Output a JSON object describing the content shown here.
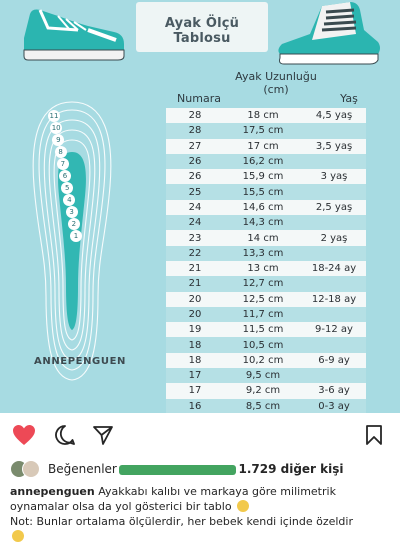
{
  "image": {
    "title": "Ayak Ölçü Tablosu",
    "brand": "ANNEPENGUEN",
    "headers": {
      "number": "Numara",
      "length": "Ayak Uzunluğu (cm)",
      "age": "Yaş"
    },
    "rows": [
      {
        "num": "28",
        "cm": "18 cm",
        "age": "4,5 yaş"
      },
      {
        "num": "28",
        "cm": "17,5 cm",
        "age": ""
      },
      {
        "num": "27",
        "cm": "17 cm",
        "age": "3,5 yaş"
      },
      {
        "num": "26",
        "cm": "16,2 cm",
        "age": ""
      },
      {
        "num": "26",
        "cm": "15,9 cm",
        "age": "3 yaş"
      },
      {
        "num": "25",
        "cm": "15,5 cm",
        "age": ""
      },
      {
        "num": "24",
        "cm": "14,6 cm",
        "age": "2,5 yaş"
      },
      {
        "num": "24",
        "cm": "14,3 cm",
        "age": ""
      },
      {
        "num": "23",
        "cm": "14 cm",
        "age": "2 yaş"
      },
      {
        "num": "22",
        "cm": "13,3 cm",
        "age": ""
      },
      {
        "num": "21",
        "cm": "13 cm",
        "age": "18-24 ay"
      },
      {
        "num": "21",
        "cm": "12,7 cm",
        "age": ""
      },
      {
        "num": "20",
        "cm": "12,5 cm",
        "age": "12-18 ay"
      },
      {
        "num": "20",
        "cm": "11,7 cm",
        "age": ""
      },
      {
        "num": "19",
        "cm": "11,5 cm",
        "age": "9-12 ay"
      },
      {
        "num": "18",
        "cm": "10,5 cm",
        "age": ""
      },
      {
        "num": "18",
        "cm": "10,2 cm",
        "age": "6-9 ay"
      },
      {
        "num": "17",
        "cm": "9,5 cm",
        "age": ""
      },
      {
        "num": "17",
        "cm": "9,2 cm",
        "age": "3-6 ay"
      },
      {
        "num": "16",
        "cm": "8,5 cm",
        "age": "0-3 ay"
      }
    ],
    "foot_sizes": [
      "11",
      "10",
      "9",
      "8",
      "7",
      "6",
      "5",
      "4",
      "3",
      "2",
      "1"
    ]
  },
  "actions": {
    "like_icon": "heart-icon",
    "comment_icon": "comment-icon",
    "share_icon": "send-icon",
    "save_icon": "bookmark-icon",
    "like_color": "#ed4956"
  },
  "likes": {
    "prefix": "Beğenenler",
    "rest": "1.729 diğer kişi"
  },
  "caption": {
    "username": "annepenguen",
    "text": "Ayakkabı kalıbı ve markaya göre milimetrik oynamalar olsa da yol gösterici bir tablo",
    "note": "Not: Bunlar ortalama ölçülerdir, her bebek kendi içinde özeldir"
  }
}
